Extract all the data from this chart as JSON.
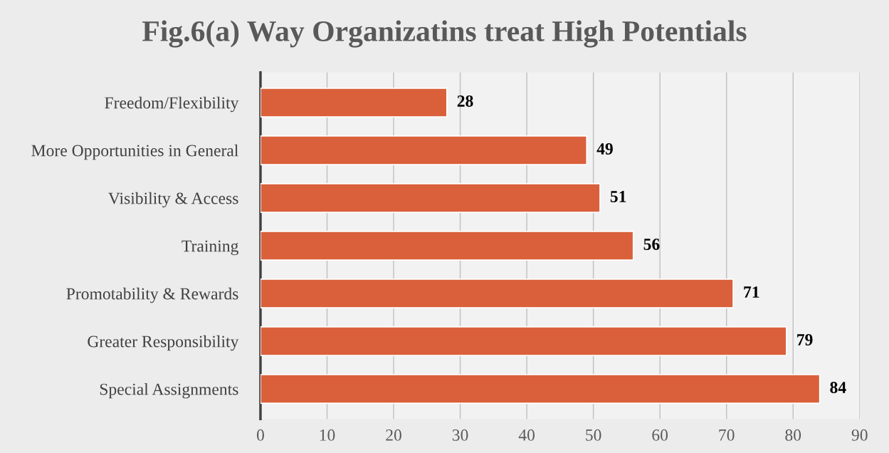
{
  "chart_data": {
    "type": "bar",
    "orientation": "horizontal",
    "title": "Fig.6(a) Way Organizatins treat High Potentials",
    "categories": [
      "Freedom/Flexibility",
      "More Opportunities in General",
      "Visibility & Access",
      "Training",
      "Promotability & Rewards",
      "Greater Responsibility",
      "Special Assignments"
    ],
    "values": [
      28,
      49,
      51,
      56,
      71,
      79,
      84
    ],
    "color": "#d9603b",
    "xlim": [
      0,
      90
    ],
    "xticks": [
      0,
      10,
      20,
      30,
      40,
      50,
      60,
      70,
      80,
      90
    ],
    "grid": "x",
    "data_labels": true,
    "legend": false
  }
}
